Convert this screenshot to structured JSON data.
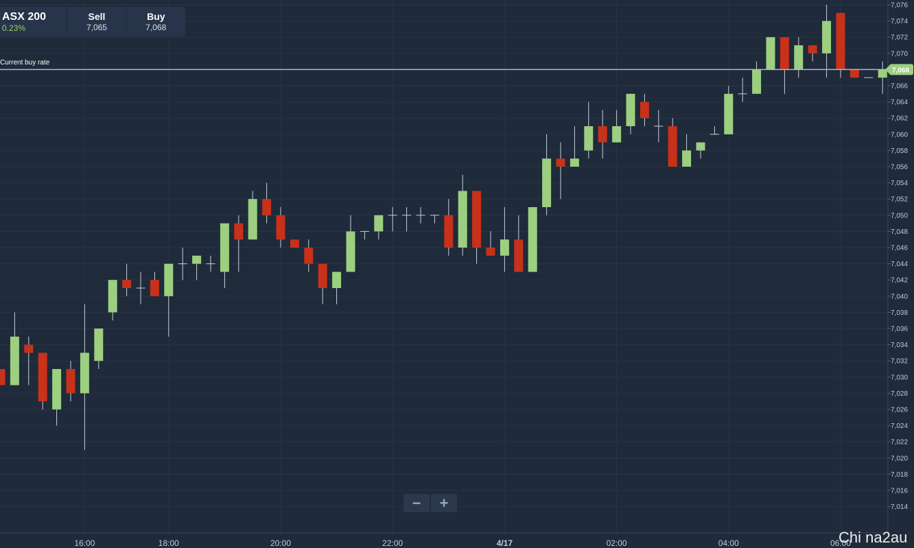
{
  "instrument": {
    "name": "ASX 200",
    "change": "0.23%"
  },
  "quote": {
    "sell_label": "Sell",
    "sell_value": "7,065",
    "buy_label": "Buy",
    "buy_value": "7,068"
  },
  "current_rate": {
    "label": "Current buy rate",
    "value": 7068,
    "value_text": "7,068"
  },
  "zoom": {
    "minus": "−",
    "plus": "+"
  },
  "watermark": "Chi na2au",
  "colors": {
    "background": "#1f2a3a",
    "grid": "#283548",
    "up": "#9ccf7f",
    "down": "#c8311a",
    "wick": "#c9d2dc",
    "price_line": "#b8b3d8",
    "tag": "#9ccf7f"
  },
  "chart_data": {
    "type": "candlestick",
    "title": "",
    "xlabel": "",
    "ylabel": "",
    "ylim": [
      7012,
      7076
    ],
    "y_ticks": [
      7076,
      7074,
      7072,
      7070,
      7068,
      7066,
      7064,
      7062,
      7060,
      7058,
      7056,
      7054,
      7052,
      7050,
      7048,
      7046,
      7044,
      7042,
      7040,
      7038,
      7036,
      7034,
      7032,
      7030,
      7028,
      7026,
      7024,
      7022,
      7020,
      7018,
      7016,
      7014
    ],
    "x_ticks": [
      {
        "label": "16:00",
        "index": 6
      },
      {
        "label": "18:00",
        "index": 12
      },
      {
        "label": "20:00",
        "index": 20
      },
      {
        "label": "22:00",
        "index": 28
      },
      {
        "label": "4/17",
        "index": 36,
        "bold": true
      },
      {
        "label": "02:00",
        "index": 44
      },
      {
        "label": "04:00",
        "index": 52
      },
      {
        "label": "06:00",
        "index": 60
      }
    ],
    "grid": true,
    "time_step_minutes": 20,
    "candles": [
      {
        "o": 7031,
        "h": 7031,
        "l": 7029,
        "c": 7029
      },
      {
        "o": 7029,
        "h": 7038,
        "l": 7029,
        "c": 7035
      },
      {
        "o": 7034,
        "h": 7035,
        "l": 7029,
        "c": 7033
      },
      {
        "o": 7033,
        "h": 7033,
        "l": 7026,
        "c": 7027
      },
      {
        "o": 7026,
        "h": 7031,
        "l": 7024,
        "c": 7031
      },
      {
        "o": 7031,
        "h": 7032,
        "l": 7027,
        "c": 7028
      },
      {
        "o": 7028,
        "h": 7039,
        "l": 7021,
        "c": 7033
      },
      {
        "o": 7032,
        "h": 7036,
        "l": 7031,
        "c": 7036
      },
      {
        "o": 7038,
        "h": 7042,
        "l": 7037,
        "c": 7042
      },
      {
        "o": 7042,
        "h": 7044,
        "l": 7040,
        "c": 7041
      },
      {
        "o": 7041,
        "h": 7043,
        "l": 7039,
        "c": 7041
      },
      {
        "o": 7042,
        "h": 7043,
        "l": 7040,
        "c": 7040
      },
      {
        "o": 7040,
        "h": 7044,
        "l": 7035,
        "c": 7044
      },
      {
        "o": 7044,
        "h": 7046,
        "l": 7042,
        "c": 7044
      },
      {
        "o": 7044,
        "h": 7045,
        "l": 7042,
        "c": 7045
      },
      {
        "o": 7044,
        "h": 7045,
        "l": 7043,
        "c": 7044
      },
      {
        "o": 7043,
        "h": 7049,
        "l": 7041,
        "c": 7049
      },
      {
        "o": 7049,
        "h": 7050,
        "l": 7043,
        "c": 7047
      },
      {
        "o": 7047,
        "h": 7053,
        "l": 7047,
        "c": 7052
      },
      {
        "o": 7052,
        "h": 7054,
        "l": 7049,
        "c": 7050
      },
      {
        "o": 7050,
        "h": 7051,
        "l": 7046,
        "c": 7047
      },
      {
        "o": 7047,
        "h": 7047,
        "l": 7046,
        "c": 7046
      },
      {
        "o": 7046,
        "h": 7047,
        "l": 7043,
        "c": 7044
      },
      {
        "o": 7044,
        "h": 7044,
        "l": 7039,
        "c": 7041
      },
      {
        "o": 7041,
        "h": 7043,
        "l": 7039,
        "c": 7043
      },
      {
        "o": 7043,
        "h": 7050,
        "l": 7043,
        "c": 7048
      },
      {
        "o": 7048,
        "h": 7048,
        "l": 7047,
        "c": 7048
      },
      {
        "o": 7048,
        "h": 7050,
        "l": 7047,
        "c": 7050
      },
      {
        "o": 7050,
        "h": 7051,
        "l": 7048,
        "c": 7050
      },
      {
        "o": 7050,
        "h": 7051,
        "l": 7048,
        "c": 7050
      },
      {
        "o": 7050,
        "h": 7051,
        "l": 7049,
        "c": 7050
      },
      {
        "o": 7050,
        "h": 7050,
        "l": 7049,
        "c": 7050
      },
      {
        "o": 7050,
        "h": 7052,
        "l": 7045,
        "c": 7046
      },
      {
        "o": 7046,
        "h": 7055,
        "l": 7045,
        "c": 7053
      },
      {
        "o": 7053,
        "h": 7053,
        "l": 7044,
        "c": 7046
      },
      {
        "o": 7046,
        "h": 7048,
        "l": 7045,
        "c": 7045
      },
      {
        "o": 7045,
        "h": 7051,
        "l": 7043,
        "c": 7047
      },
      {
        "o": 7047,
        "h": 7050,
        "l": 7043,
        "c": 7043
      },
      {
        "o": 7043,
        "h": 7051,
        "l": 7043,
        "c": 7051
      },
      {
        "o": 7051,
        "h": 7060,
        "l": 7050,
        "c": 7057
      },
      {
        "o": 7057,
        "h": 7059,
        "l": 7052,
        "c": 7056
      },
      {
        "o": 7056,
        "h": 7061,
        "l": 7056,
        "c": 7057
      },
      {
        "o": 7058,
        "h": 7064,
        "l": 7057,
        "c": 7061
      },
      {
        "o": 7061,
        "h": 7063,
        "l": 7057,
        "c": 7059
      },
      {
        "o": 7059,
        "h": 7063,
        "l": 7059,
        "c": 7061
      },
      {
        "o": 7061,
        "h": 7065,
        "l": 7060,
        "c": 7065
      },
      {
        "o": 7064,
        "h": 7065,
        "l": 7061,
        "c": 7062
      },
      {
        "o": 7061,
        "h": 7063,
        "l": 7059,
        "c": 7061
      },
      {
        "o": 7061,
        "h": 7062,
        "l": 7056,
        "c": 7056
      },
      {
        "o": 7056,
        "h": 7060,
        "l": 7056,
        "c": 7058
      },
      {
        "o": 7058,
        "h": 7059,
        "l": 7057,
        "c": 7059
      },
      {
        "o": 7060,
        "h": 7061,
        "l": 7060,
        "c": 7060
      },
      {
        "o": 7060,
        "h": 7066,
        "l": 7060,
        "c": 7065
      },
      {
        "o": 7065,
        "h": 7067,
        "l": 7064,
        "c": 7065
      },
      {
        "o": 7065,
        "h": 7069,
        "l": 7065,
        "c": 7068
      },
      {
        "o": 7068,
        "h": 7072,
        "l": 7068,
        "c": 7072
      },
      {
        "o": 7072,
        "h": 7072,
        "l": 7065,
        "c": 7068
      },
      {
        "o": 7068,
        "h": 7072,
        "l": 7067,
        "c": 7071
      },
      {
        "o": 7071,
        "h": 7071,
        "l": 7069,
        "c": 7070
      },
      {
        "o": 7070,
        "h": 7076,
        "l": 7067,
        "c": 7074
      },
      {
        "o": 7075,
        "h": 7075,
        "l": 7067,
        "c": 7068
      },
      {
        "o": 7068,
        "h": 7068,
        "l": 7067,
        "c": 7067
      },
      {
        "o": 7067,
        "h": 7067,
        "l": 7067,
        "c": 7067
      },
      {
        "o": 7067,
        "h": 7069,
        "l": 7065,
        "c": 7068
      }
    ]
  }
}
